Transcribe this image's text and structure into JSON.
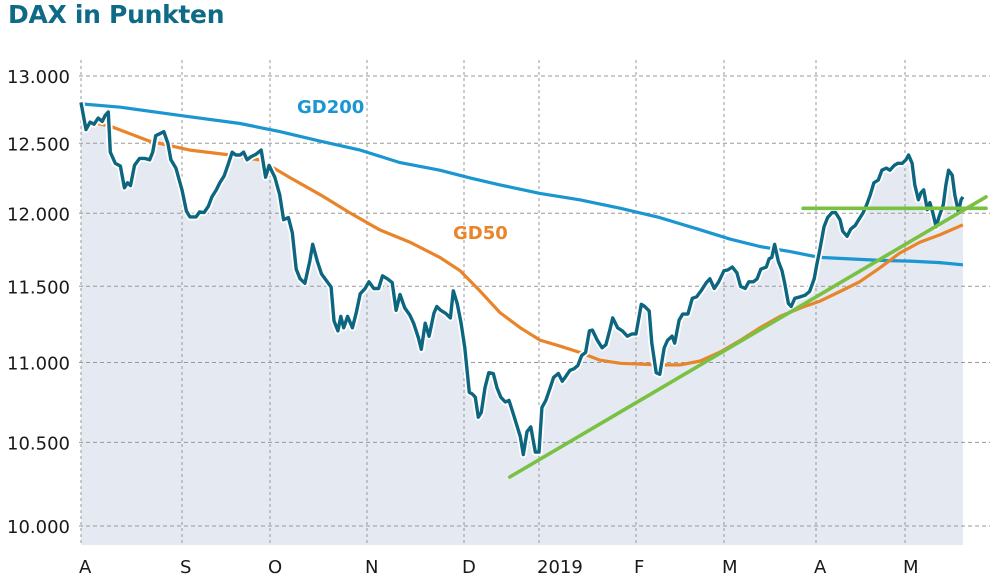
{
  "chart_data": {
    "type": "line",
    "title": "DAX in Punkten",
    "xlabel": "",
    "ylabel": "",
    "yscale": "log",
    "ylim": [
      10000,
      13000
    ],
    "yticks": [
      13000,
      12500,
      12000,
      11500,
      11000,
      10500,
      10000
    ],
    "ytick_labels": [
      "13.000",
      "12.500",
      "12.000",
      "11.500",
      "11.000",
      "10.500",
      "10.000"
    ],
    "x_unit": "months since start of August 2018",
    "xticks": [
      0,
      1,
      2,
      3,
      4,
      5,
      6,
      7,
      8,
      9
    ],
    "xtick_labels": [
      "A",
      "S",
      "O",
      "N",
      "D",
      "2019",
      "F",
      "M",
      "A",
      "M"
    ],
    "xlim": [
      0,
      9.65
    ],
    "grid": true,
    "colors": {
      "title": "#0f6a86",
      "dax": "#0d6680",
      "gd200": "#1b96d1",
      "gd50": "#e8852b",
      "trend": "#7ac143",
      "fill": "#e4e9f2",
      "grid": "#999999"
    },
    "series": [
      {
        "name": "DAX",
        "points": [
          [
            0.0,
            12800
          ],
          [
            0.05,
            12600
          ],
          [
            0.09,
            12655
          ],
          [
            0.13,
            12640
          ],
          [
            0.17,
            12685
          ],
          [
            0.21,
            12660
          ],
          [
            0.24,
            12705
          ],
          [
            0.27,
            12730
          ],
          [
            0.29,
            12435
          ],
          [
            0.34,
            12355
          ],
          [
            0.39,
            12335
          ],
          [
            0.43,
            12180
          ],
          [
            0.46,
            12215
          ],
          [
            0.49,
            12195
          ],
          [
            0.53,
            12340
          ],
          [
            0.58,
            12390
          ],
          [
            0.63,
            12390
          ],
          [
            0.68,
            12380
          ],
          [
            0.71,
            12435
          ],
          [
            0.74,
            12555
          ],
          [
            0.78,
            12570
          ],
          [
            0.82,
            12585
          ],
          [
            0.86,
            12500
          ],
          [
            0.89,
            12380
          ],
          [
            0.94,
            12320
          ],
          [
            1.0,
            12165
          ],
          [
            1.05,
            12015
          ],
          [
            1.09,
            11975
          ],
          [
            1.16,
            11975
          ],
          [
            1.2,
            12010
          ],
          [
            1.25,
            12005
          ],
          [
            1.3,
            12050
          ],
          [
            1.34,
            12115
          ],
          [
            1.39,
            12165
          ],
          [
            1.43,
            12215
          ],
          [
            1.48,
            12265
          ],
          [
            1.52,
            12340
          ],
          [
            1.57,
            12435
          ],
          [
            1.61,
            12415
          ],
          [
            1.66,
            12415
          ],
          [
            1.7,
            12435
          ],
          [
            1.74,
            12380
          ],
          [
            1.78,
            12400
          ],
          [
            1.84,
            12420
          ],
          [
            1.9,
            12450
          ],
          [
            1.95,
            12255
          ],
          [
            1.99,
            12340
          ],
          [
            2.05,
            12255
          ],
          [
            2.1,
            12130
          ],
          [
            2.14,
            11955
          ],
          [
            2.19,
            11970
          ],
          [
            2.23,
            11865
          ],
          [
            2.27,
            11615
          ],
          [
            2.31,
            11550
          ],
          [
            2.36,
            11520
          ],
          [
            2.41,
            11670
          ],
          [
            2.44,
            11785
          ],
          [
            2.49,
            11665
          ],
          [
            2.53,
            11585
          ],
          [
            2.59,
            11530
          ],
          [
            2.63,
            11495
          ],
          [
            2.66,
            11270
          ],
          [
            2.7,
            11205
          ],
          [
            2.73,
            11300
          ],
          [
            2.76,
            11225
          ],
          [
            2.8,
            11300
          ],
          [
            2.85,
            11225
          ],
          [
            2.89,
            11325
          ],
          [
            2.93,
            11450
          ],
          [
            2.98,
            11485
          ],
          [
            3.02,
            11530
          ],
          [
            3.07,
            11485
          ],
          [
            3.12,
            11485
          ],
          [
            3.16,
            11570
          ],
          [
            3.21,
            11550
          ],
          [
            3.26,
            11525
          ],
          [
            3.3,
            11340
          ],
          [
            3.34,
            11445
          ],
          [
            3.39,
            11355
          ],
          [
            3.44,
            11310
          ],
          [
            3.48,
            11255
          ],
          [
            3.53,
            11160
          ],
          [
            3.56,
            11085
          ],
          [
            3.6,
            11255
          ],
          [
            3.64,
            11170
          ],
          [
            3.69,
            11320
          ],
          [
            3.72,
            11365
          ],
          [
            3.76,
            11340
          ],
          [
            3.81,
            11320
          ],
          [
            3.86,
            11290
          ],
          [
            3.89,
            11470
          ],
          [
            3.93,
            11385
          ],
          [
            3.97,
            11255
          ],
          [
            4.01,
            11095
          ],
          [
            4.07,
            10810
          ],
          [
            4.11,
            10800
          ],
          [
            4.15,
            10780
          ],
          [
            4.19,
            10655
          ],
          [
            4.23,
            10685
          ],
          [
            4.28,
            10840
          ],
          [
            4.33,
            10935
          ],
          [
            4.39,
            10930
          ],
          [
            4.44,
            10840
          ],
          [
            4.49,
            10780
          ],
          [
            4.55,
            10750
          ],
          [
            4.6,
            10760
          ],
          [
            4.65,
            10685
          ],
          [
            4.69,
            10625
          ],
          [
            4.75,
            10535
          ],
          [
            4.79,
            10425
          ],
          [
            4.84,
            10565
          ],
          [
            4.89,
            10595
          ],
          [
            4.95,
            10440
          ],
          [
            5.0,
            10440
          ],
          [
            5.03,
            10715
          ],
          [
            5.07,
            10760
          ],
          [
            5.11,
            10830
          ],
          [
            5.15,
            10905
          ],
          [
            5.2,
            10930
          ],
          [
            5.24,
            10880
          ],
          [
            5.28,
            10915
          ],
          [
            5.32,
            10950
          ],
          [
            5.36,
            10960
          ],
          [
            5.4,
            10980
          ],
          [
            5.44,
            11045
          ],
          [
            5.48,
            11065
          ],
          [
            5.52,
            11205
          ],
          [
            5.55,
            11210
          ],
          [
            5.6,
            11145
          ],
          [
            5.65,
            11095
          ],
          [
            5.69,
            11115
          ],
          [
            5.73,
            11210
          ],
          [
            5.76,
            11290
          ],
          [
            5.81,
            11225
          ],
          [
            5.86,
            11205
          ],
          [
            5.91,
            11170
          ],
          [
            5.96,
            11185
          ],
          [
            6.0,
            11185
          ],
          [
            6.06,
            11380
          ],
          [
            6.1,
            11365
          ],
          [
            6.15,
            11335
          ],
          [
            6.18,
            11125
          ],
          [
            6.23,
            10935
          ],
          [
            6.27,
            10925
          ],
          [
            6.32,
            11095
          ],
          [
            6.36,
            11145
          ],
          [
            6.41,
            11170
          ],
          [
            6.44,
            11125
          ],
          [
            6.49,
            11275
          ],
          [
            6.53,
            11315
          ],
          [
            6.59,
            11315
          ],
          [
            6.64,
            11420
          ],
          [
            6.69,
            11430
          ],
          [
            6.74,
            11470
          ],
          [
            6.8,
            11525
          ],
          [
            6.84,
            11550
          ],
          [
            6.89,
            11485
          ],
          [
            6.94,
            11530
          ],
          [
            7.0,
            11605
          ],
          [
            7.04,
            11610
          ],
          [
            7.09,
            11630
          ],
          [
            7.14,
            11590
          ],
          [
            7.18,
            11500
          ],
          [
            7.23,
            11485
          ],
          [
            7.27,
            11530
          ],
          [
            7.32,
            11530
          ],
          [
            7.36,
            11550
          ],
          [
            7.4,
            11615
          ],
          [
            7.46,
            11630
          ],
          [
            7.49,
            11685
          ],
          [
            7.52,
            11695
          ],
          [
            7.55,
            11785
          ],
          [
            7.59,
            11670
          ],
          [
            7.63,
            11605
          ],
          [
            7.66,
            11520
          ],
          [
            7.7,
            11385
          ],
          [
            7.73,
            11365
          ],
          [
            7.77,
            11420
          ],
          [
            7.83,
            11430
          ],
          [
            7.88,
            11440
          ],
          [
            7.93,
            11465
          ],
          [
            7.98,
            11550
          ],
          [
            8.01,
            11650
          ],
          [
            8.04,
            11740
          ],
          [
            8.09,
            11905
          ],
          [
            8.13,
            11970
          ],
          [
            8.18,
            12005
          ],
          [
            8.22,
            12005
          ],
          [
            8.27,
            11955
          ],
          [
            8.3,
            11875
          ],
          [
            8.35,
            11840
          ],
          [
            8.39,
            11890
          ],
          [
            8.44,
            11915
          ],
          [
            8.48,
            11955
          ],
          [
            8.53,
            12005
          ],
          [
            8.57,
            12060
          ],
          [
            8.61,
            12130
          ],
          [
            8.65,
            12215
          ],
          [
            8.7,
            12235
          ],
          [
            8.74,
            12305
          ],
          [
            8.79,
            12320
          ],
          [
            8.83,
            12305
          ],
          [
            8.88,
            12340
          ],
          [
            8.92,
            12355
          ],
          [
            8.97,
            12355
          ],
          [
            9.01,
            12380
          ],
          [
            9.04,
            12415
          ],
          [
            9.08,
            12355
          ],
          [
            9.11,
            12200
          ],
          [
            9.15,
            12095
          ],
          [
            9.18,
            12145
          ],
          [
            9.21,
            12165
          ],
          [
            9.25,
            12025
          ],
          [
            9.28,
            12075
          ],
          [
            9.31,
            12010
          ],
          [
            9.35,
            11905
          ],
          [
            9.38,
            11970
          ],
          [
            9.43,
            12060
          ],
          [
            9.46,
            12200
          ],
          [
            9.49,
            12305
          ],
          [
            9.53,
            12270
          ],
          [
            9.56,
            12130
          ],
          [
            9.6,
            12010
          ],
          [
            9.63,
            12095
          ],
          [
            9.65,
            12115
          ]
        ]
      },
      {
        "name": "GD200",
        "label": "GD200",
        "points": [
          [
            0.0,
            12790
          ],
          [
            0.39,
            12766
          ],
          [
            0.98,
            12705
          ],
          [
            1.66,
            12645
          ],
          [
            2.1,
            12585
          ],
          [
            2.52,
            12515
          ],
          [
            2.93,
            12450
          ],
          [
            3.34,
            12360
          ],
          [
            3.75,
            12305
          ],
          [
            4.08,
            12250
          ],
          [
            4.48,
            12200
          ],
          [
            5.01,
            12140
          ],
          [
            5.42,
            12095
          ],
          [
            5.84,
            12035
          ],
          [
            6.27,
            11970
          ],
          [
            6.73,
            11885
          ],
          [
            7.07,
            11820
          ],
          [
            7.39,
            11770
          ],
          [
            7.72,
            11735
          ],
          [
            8.04,
            11695
          ],
          [
            8.38,
            11685
          ],
          [
            8.72,
            11675
          ],
          [
            9.06,
            11670
          ],
          [
            9.39,
            11660
          ],
          [
            9.65,
            11645
          ]
        ]
      },
      {
        "name": "GD50",
        "label": "GD50",
        "points": [
          [
            0.0,
            12670
          ],
          [
            0.29,
            12625
          ],
          [
            0.68,
            12515
          ],
          [
            1.09,
            12450
          ],
          [
            1.55,
            12415
          ],
          [
            1.89,
            12378
          ],
          [
            2.21,
            12250
          ],
          [
            2.52,
            12130
          ],
          [
            2.82,
            12005
          ],
          [
            3.13,
            11885
          ],
          [
            3.44,
            11800
          ],
          [
            3.75,
            11695
          ],
          [
            3.96,
            11605
          ],
          [
            4.21,
            11470
          ],
          [
            4.48,
            11325
          ],
          [
            4.75,
            11225
          ],
          [
            5.01,
            11145
          ],
          [
            5.22,
            11105
          ],
          [
            5.42,
            11065
          ],
          [
            5.63,
            11015
          ],
          [
            5.84,
            10995
          ],
          [
            6.05,
            10990
          ],
          [
            6.27,
            10985
          ],
          [
            6.5,
            10985
          ],
          [
            6.73,
            11010
          ],
          [
            6.95,
            11065
          ],
          [
            7.17,
            11140
          ],
          [
            7.39,
            11225
          ],
          [
            7.61,
            11300
          ],
          [
            7.83,
            11355
          ],
          [
            8.04,
            11400
          ],
          [
            8.27,
            11465
          ],
          [
            8.49,
            11530
          ],
          [
            8.72,
            11625
          ],
          [
            8.94,
            11725
          ],
          [
            9.17,
            11800
          ],
          [
            9.39,
            11850
          ],
          [
            9.65,
            11920
          ]
        ]
      },
      {
        "name": "Aufwärtstrend",
        "points": [
          [
            4.61,
            10290
          ],
          [
            9.91,
            12115
          ]
        ]
      },
      {
        "name": "Widerstand",
        "points": [
          [
            7.86,
            12035
          ],
          [
            9.91,
            12035
          ]
        ]
      }
    ]
  }
}
